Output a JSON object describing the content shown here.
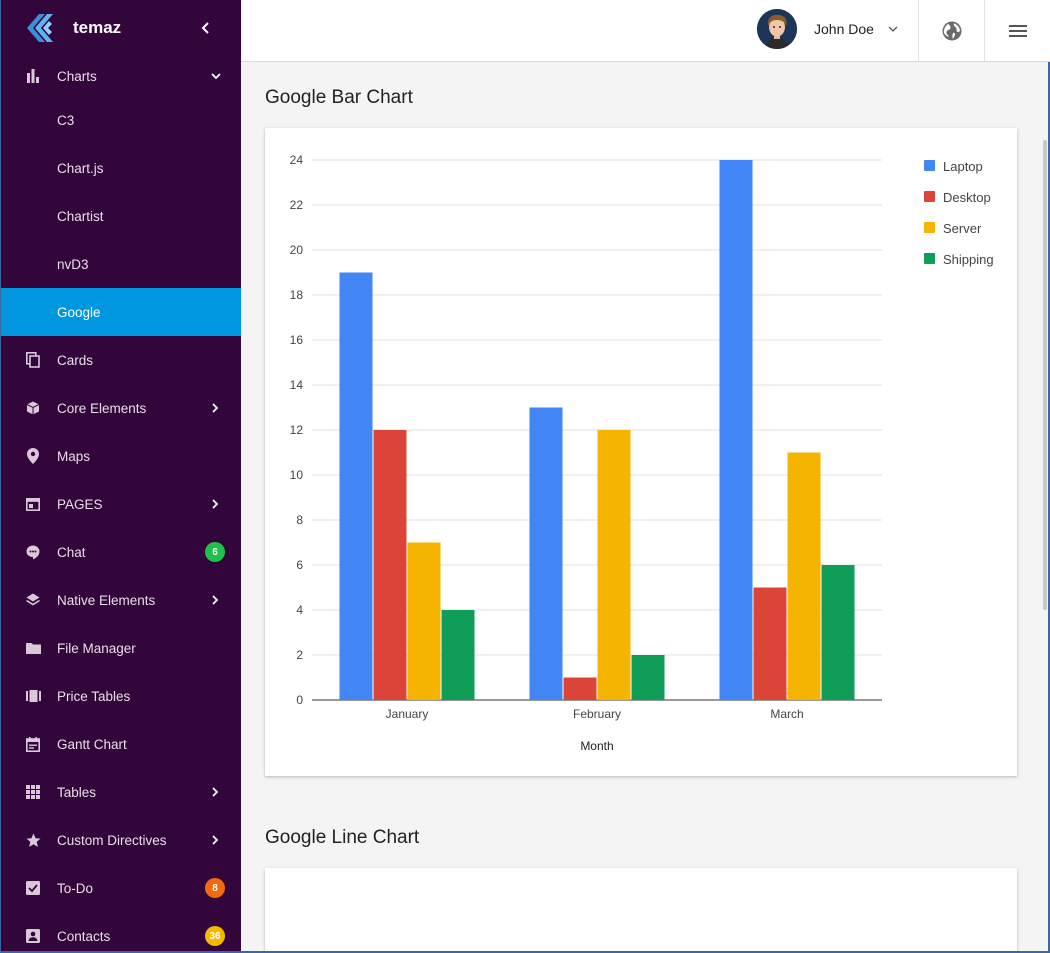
{
  "brand": {
    "name": "temaz"
  },
  "sidebar": {
    "items": [
      {
        "label": "Charts",
        "icon": "bar-chart-icon",
        "expanded": true
      },
      {
        "label": "C3"
      },
      {
        "label": "Chart.js"
      },
      {
        "label": "Chartist"
      },
      {
        "label": "nvD3"
      },
      {
        "label": "Google",
        "active": true
      },
      {
        "label": "Cards",
        "icon": "copy-icon"
      },
      {
        "label": "Core Elements",
        "icon": "cube-icon"
      },
      {
        "label": "Maps",
        "icon": "map-pin-icon"
      },
      {
        "label": "PAGES",
        "icon": "pages-icon"
      },
      {
        "label": "Chat",
        "icon": "chat-icon",
        "badge": "6"
      },
      {
        "label": "Native Elements",
        "icon": "layers-icon"
      },
      {
        "label": "File Manager",
        "icon": "folder-icon"
      },
      {
        "label": "Price Tables",
        "icon": "ticket-icon"
      },
      {
        "label": "Gantt Chart",
        "icon": "calendar-icon"
      },
      {
        "label": "Tables",
        "icon": "grid-icon"
      },
      {
        "label": "Custom Directives",
        "icon": "star-icon"
      },
      {
        "label": "To-Do",
        "icon": "checkbox-icon",
        "badge": "8"
      },
      {
        "label": "Contacts",
        "icon": "contact-icon",
        "badge": "36"
      }
    ]
  },
  "colors": {
    "sidebar_bg": "#33063b",
    "active": "#0097e0",
    "badge_chat": "#1ec24a",
    "badge_todo": "#f26a10",
    "badge_contacts": "#f5b800"
  },
  "header": {
    "user_name": "John Doe"
  },
  "main": {
    "bar_chart_title": "Google Bar Chart",
    "line_chart_title": "Google Line Chart"
  },
  "chart_data": {
    "type": "bar",
    "categories": [
      "January",
      "February",
      "March"
    ],
    "series": [
      {
        "name": "Laptop",
        "color": "#4285f4",
        "values": [
          19,
          13,
          24
        ]
      },
      {
        "name": "Desktop",
        "color": "#db4437",
        "values": [
          12,
          1,
          5
        ]
      },
      {
        "name": "Server",
        "color": "#f4b400",
        "values": [
          7,
          12,
          11
        ]
      },
      {
        "name": "Shipping",
        "color": "#0f9d58",
        "values": [
          4,
          2,
          6
        ]
      }
    ],
    "xlabel": "Month",
    "ylabel": "",
    "ylim": [
      0,
      24
    ],
    "yticks": [
      0,
      2,
      4,
      6,
      8,
      10,
      12,
      14,
      16,
      18,
      20,
      22,
      24
    ],
    "grid": true,
    "legend": "right"
  }
}
